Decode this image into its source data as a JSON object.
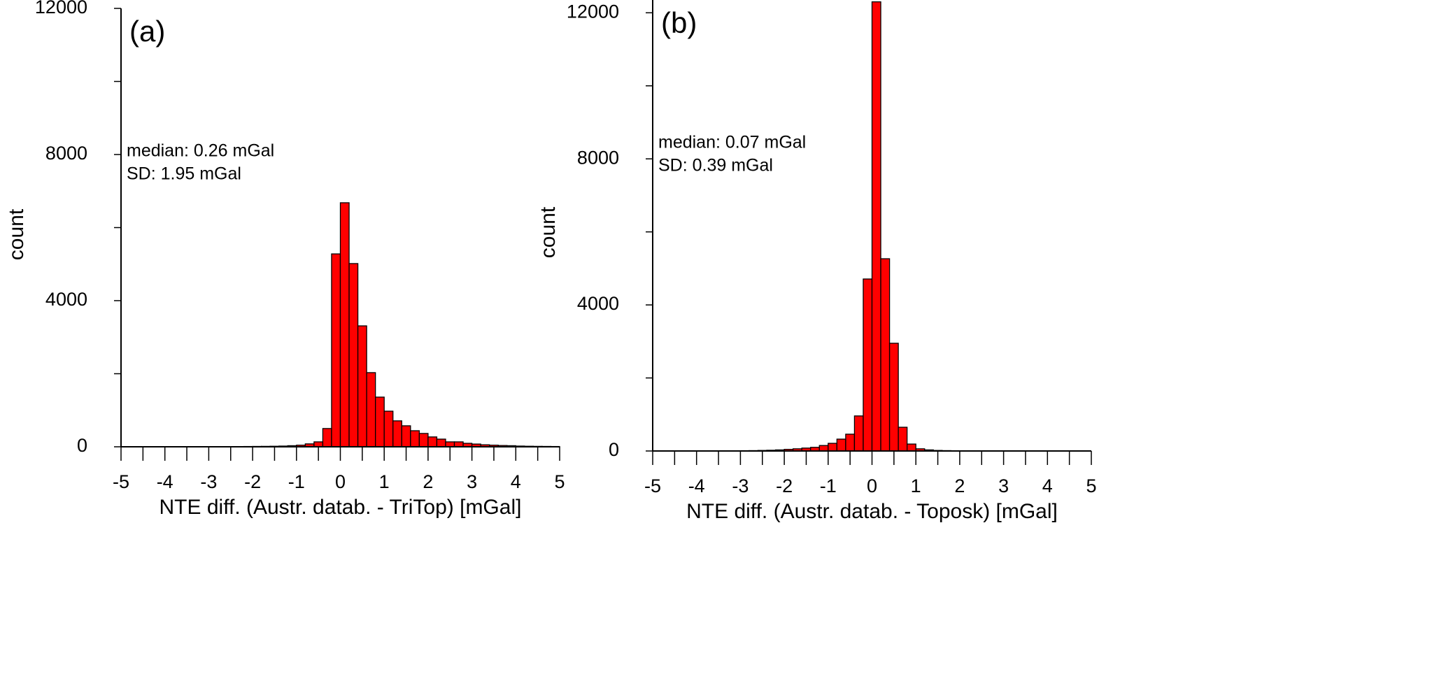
{
  "chart_data": [
    {
      "type": "histogram",
      "panel_label": "(a)",
      "annotations": [
        "median: 0.26 mGal",
        "SD: 1.95 mGal"
      ],
      "xlabel": "NTE diff. (Austr. datab. - TriTop) [mGal]",
      "ylabel": "count",
      "bins": [
        -5,
        -4.8,
        -4.6,
        -4.4,
        -4.2,
        -4,
        -3.8,
        -3.6,
        -3.4,
        -3.2,
        -3,
        -2.8,
        -2.6,
        -2.4,
        -2.2,
        -2,
        -1.8,
        -1.6,
        -1.4,
        -1.2,
        -1,
        -0.8,
        -0.6,
        -0.4,
        -0.2,
        0,
        0.2,
        0.4,
        0.6,
        0.8,
        1,
        1.2,
        1.4,
        1.6,
        1.8,
        2,
        2.2,
        2.4,
        2.6,
        2.8,
        3,
        3.2,
        3.4,
        3.6,
        3.8,
        4,
        4.2,
        4.4,
        4.6,
        4.8,
        5
      ],
      "counts": [
        0,
        0,
        0,
        0,
        0,
        0,
        0,
        0,
        0,
        0,
        5,
        0,
        3,
        5,
        8,
        10,
        12,
        15,
        20,
        30,
        45,
        80,
        135,
        500,
        5280,
        6680,
        5015,
        3310,
        2030,
        1360,
        975,
        710,
        575,
        440,
        365,
        270,
        210,
        135,
        135,
        95,
        75,
        55,
        45,
        35,
        30,
        20,
        15,
        12,
        10,
        8
      ],
      "color": "#ff0000",
      "xlim": [
        -5,
        5
      ],
      "ylim": [
        0,
        12000
      ],
      "xticks": [
        -5,
        -4,
        -3,
        -2,
        -1,
        0,
        1,
        2,
        3,
        4,
        5
      ],
      "yticks": [
        0,
        4000,
        8000,
        12000
      ],
      "xticks_minor": [
        -4.5,
        -3.5,
        -2.5,
        -1.5,
        -0.5,
        0.5,
        1.5,
        2.5,
        3.5,
        4.5
      ],
      "yticks_minor": [
        2000,
        6000,
        10000
      ]
    },
    {
      "type": "histogram",
      "panel_label": "(b)",
      "annotations": [
        "median: 0.07 mGal",
        "SD: 0.39 mGal"
      ],
      "xlabel": "NTE diff. (Austr. datab. - Toposk) [mGal]",
      "ylabel": "count",
      "bins": [
        -5,
        -4.8,
        -4.6,
        -4.4,
        -4.2,
        -4,
        -3.8,
        -3.6,
        -3.4,
        -3.2,
        -3,
        -2.8,
        -2.6,
        -2.4,
        -2.2,
        -2,
        -1.8,
        -1.6,
        -1.4,
        -1.2,
        -1,
        -0.8,
        -0.6,
        -0.4,
        -0.2,
        0,
        0.2,
        0.4,
        0.6,
        0.8,
        1,
        1.2,
        1.4,
        1.6,
        1.8,
        2,
        2.2,
        2.4,
        2.6,
        2.8,
        3,
        3.2,
        3.4,
        3.6,
        3.8,
        4,
        4.2,
        4.4,
        4.6,
        4.8,
        5
      ],
      "counts": [
        0,
        0,
        0,
        2,
        2,
        3,
        3,
        4,
        5,
        6,
        8,
        10,
        15,
        20,
        30,
        45,
        60,
        80,
        100,
        150,
        210,
        325,
        460,
        960,
        4710,
        12300,
        5265,
        2950,
        650,
        190,
        60,
        30,
        15,
        10,
        6,
        4,
        3,
        2,
        0,
        0,
        0,
        0,
        0,
        0,
        0,
        0,
        0,
        0,
        0,
        0
      ],
      "color": "#ff0000",
      "xlim": [
        -5,
        5
      ],
      "ylim": [
        0,
        12350
      ],
      "xticks": [
        -5,
        -4,
        -3,
        -2,
        -1,
        0,
        1,
        2,
        3,
        4,
        5
      ],
      "yticks": [
        0,
        4000,
        8000,
        12000
      ],
      "xticks_minor": [
        -4.5,
        -3.5,
        -2.5,
        -1.5,
        -0.5,
        0.5,
        1.5,
        2.5,
        3.5,
        4.5
      ],
      "yticks_minor": [
        2000,
        6000,
        10000
      ]
    }
  ]
}
